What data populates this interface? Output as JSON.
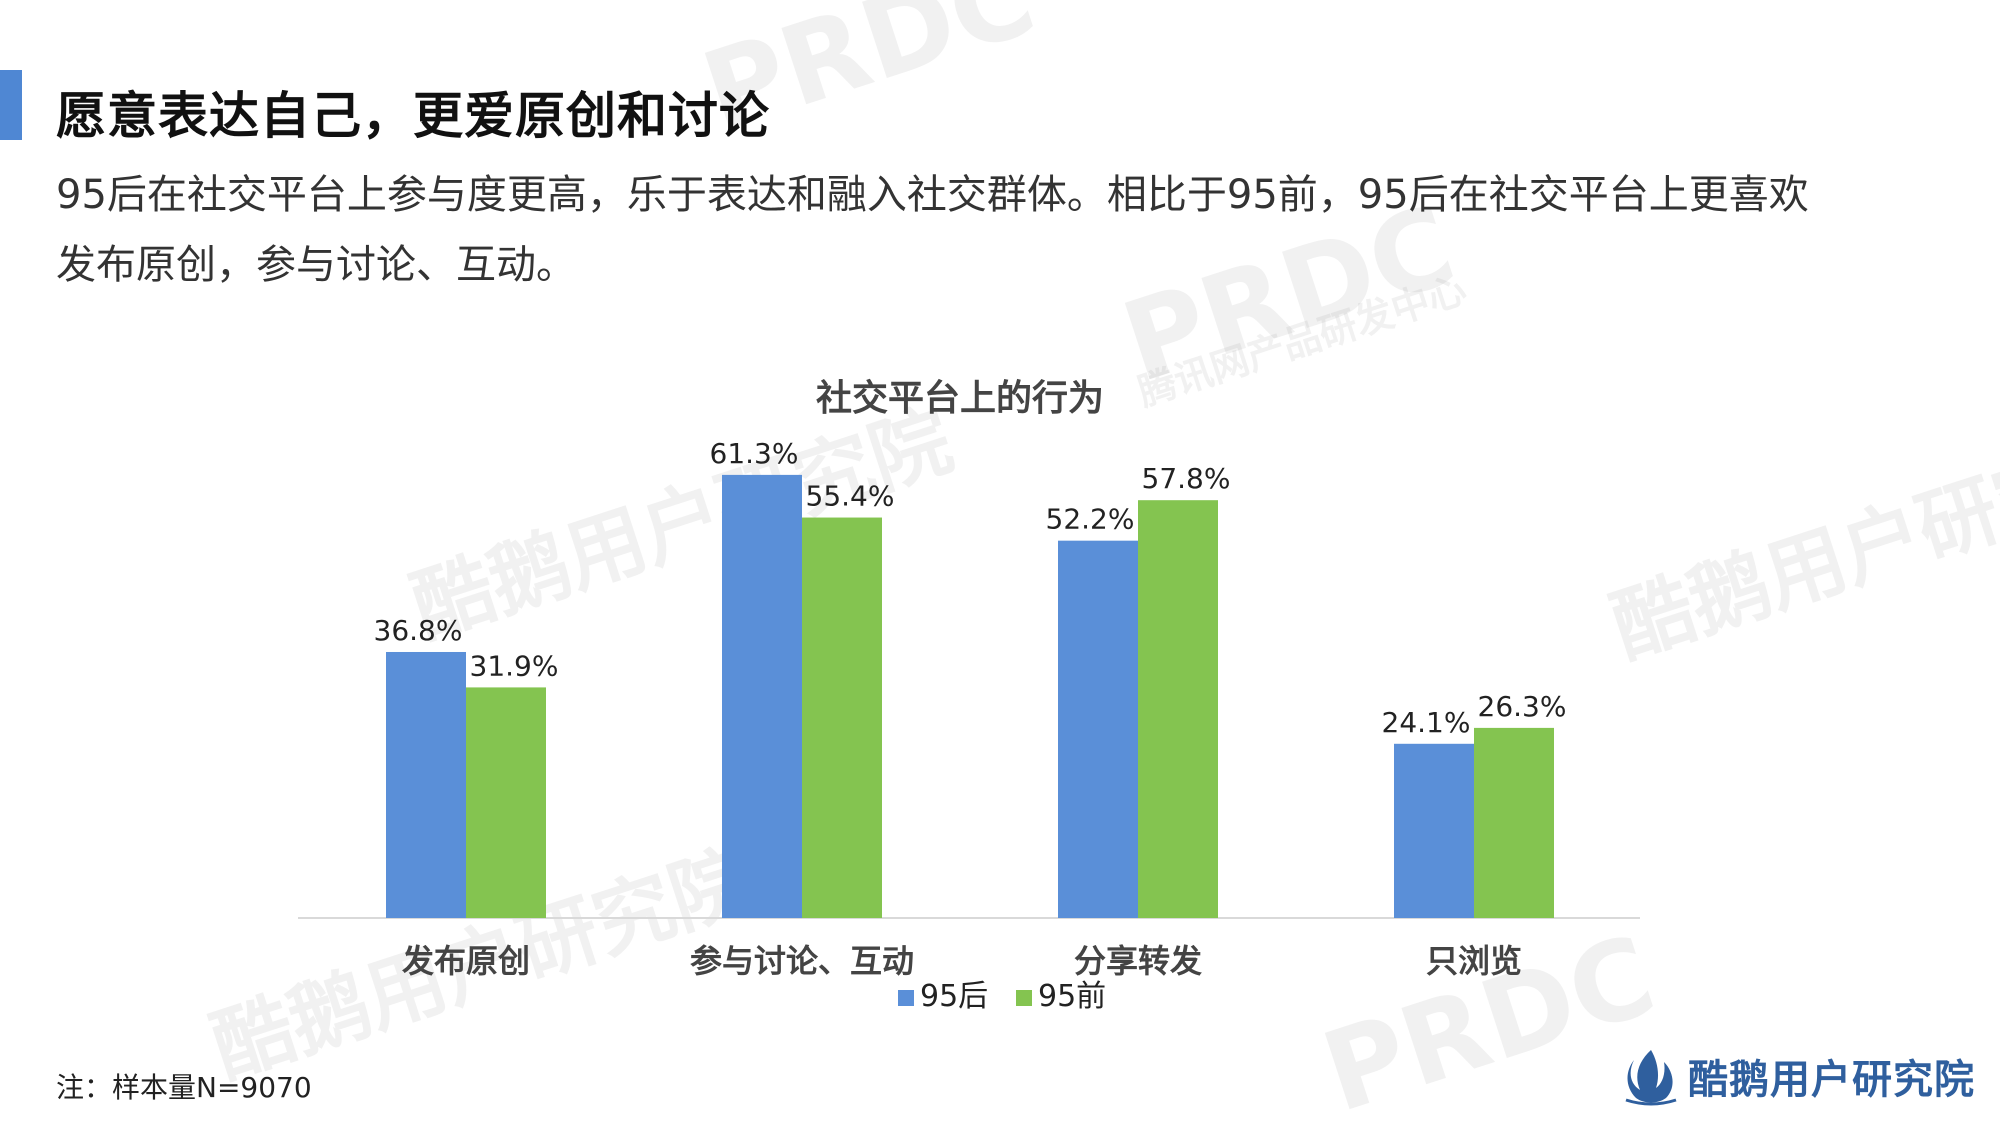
{
  "header": {
    "title": "愿意表达自己，更爱原创和讨论",
    "subtitle_line1": "95后在社交平台上参与度更高，乐于表达和融入社交群体。相比于95前，95后在社交平台上更喜欢",
    "subtitle_line2": "发布原创，参与讨论、互动。"
  },
  "footnote": "注：样本量N=9070",
  "brand": {
    "name": "酷鹅用户研究院",
    "watermark_text": "酷鹅用户研究院",
    "watermark_prdc": "PRDC",
    "watermark_sub": "腾讯网产品研发中心"
  },
  "colors": {
    "accent": "#4f87d3",
    "series_95after": "#5a8fd8",
    "series_95before": "#84c450"
  },
  "chart_data": {
    "type": "bar",
    "title": "社交平台上的行为",
    "categories": [
      "发布原创",
      "参与讨论、互动",
      "分享转发",
      "只浏览"
    ],
    "series": [
      {
        "name": "95后",
        "values": [
          36.8,
          61.3,
          52.2,
          24.1
        ],
        "labels": [
          "36.8%",
          "61.3%",
          "52.2%",
          "24.1%"
        ]
      },
      {
        "name": "95前",
        "values": [
          31.9,
          55.4,
          57.8,
          26.3
        ],
        "labels": [
          "31.9%",
          "55.4%",
          "57.8%",
          "26.3%"
        ]
      }
    ],
    "xlabel": "",
    "ylabel": "",
    "ylim": [
      0,
      70
    ],
    "grid": false,
    "legend": "bottom"
  }
}
